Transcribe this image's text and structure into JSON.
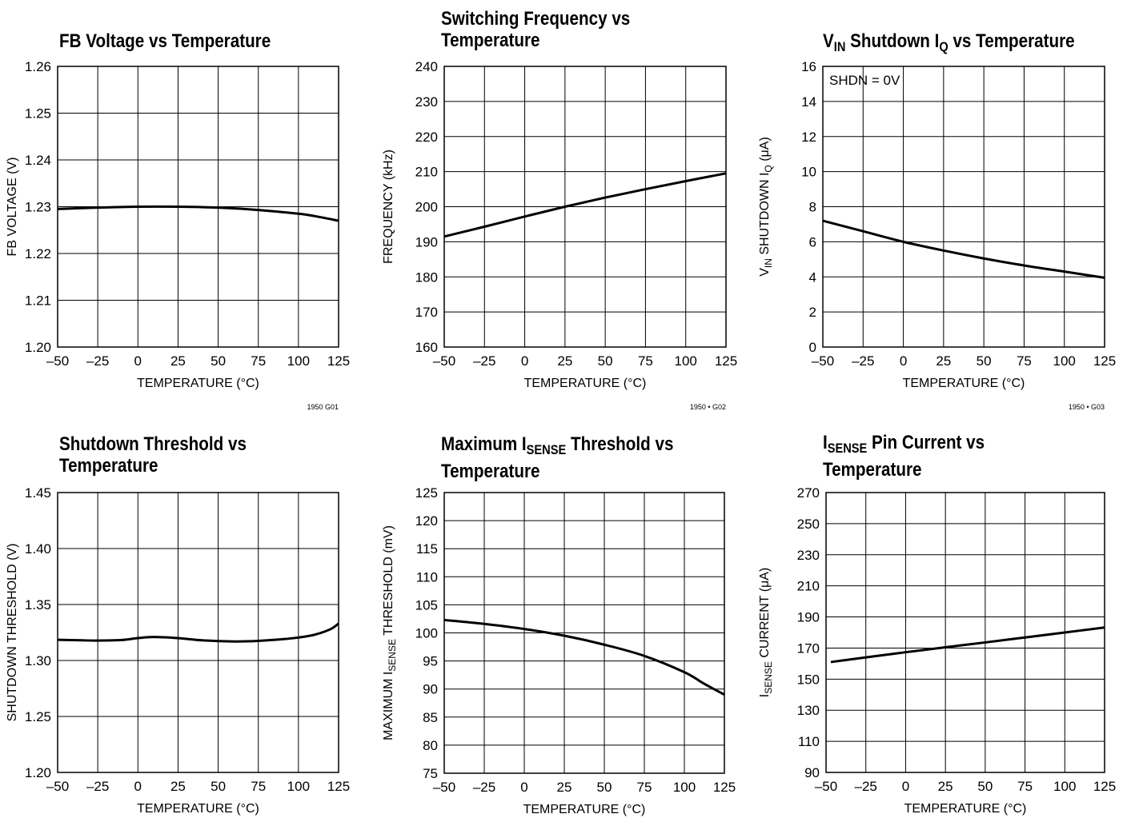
{
  "charts": [
    {
      "title": [
        "FB Voltage vs Temperature"
      ],
      "xlabel": "TEMPERATURE (°C)",
      "ylabel": "FB VOLTAGE (V)",
      "fig_id": "1950 G01",
      "annotation": ""
    },
    {
      "title": [
        "Switching Frequency vs",
        "Temperature"
      ],
      "xlabel": "TEMPERATURE (°C)",
      "ylabel": "FREQUENCY (kHz)",
      "fig_id": "1950 • G02",
      "annotation": ""
    },
    {
      "title_parts": {
        "pre": "V",
        "sub": "IN",
        "mid": " Shutdown I",
        "sub2": "Q",
        "post": " vs Temperature"
      },
      "xlabel": "TEMPERATURE (°C)",
      "ylabel_parts": {
        "pre": "V",
        "sub": "IN",
        "mid": " SHUTDOWN I",
        "sub2": "Q",
        "post": " (μA)"
      },
      "fig_id": "1950 • G03",
      "annotation": "SHDN = 0V"
    },
    {
      "title": [
        "Shutdown Threshold vs",
        "Temperature"
      ],
      "xlabel": "TEMPERATURE (°C)",
      "ylabel": "SHUTDOWN THRESHOLD (V)",
      "fig_id": "",
      "annotation": ""
    },
    {
      "title_parts": {
        "pre": "Maximum I",
        "sub": "SENSE",
        "post": " Threshold vs"
      },
      "title_line2": "Temperature",
      "xlabel": "TEMPERATURE (°C)",
      "ylabel_parts": {
        "pre": "MAXIMUM I",
        "sub": "SENSE",
        "post": " THRESHOLD (mV)"
      },
      "fig_id": "",
      "annotation": ""
    },
    {
      "title_parts": {
        "pre": "I",
        "sub": "SENSE",
        "post": " Pin Current vs"
      },
      "title_line2": "Temperature",
      "xlabel": "TEMPERATURE (°C)",
      "ylabel_parts": {
        "pre": "I",
        "sub": "SENSE",
        "post": " CURRENT (μA)"
      },
      "fig_id": "",
      "annotation": ""
    }
  ],
  "chart_data": [
    {
      "type": "line",
      "title": "FB Voltage vs Temperature",
      "xlabel": "TEMPERATURE (°C)",
      "ylabel": "FB VOLTAGE (V)",
      "xlim": [
        -50,
        125
      ],
      "ylim": [
        1.2,
        1.26
      ],
      "xticks": [
        -50,
        -25,
        0,
        25,
        50,
        75,
        100,
        125
      ],
      "xtick_labels": [
        "–50",
        "–25",
        "0",
        "25",
        "50",
        "75",
        "100",
        "125"
      ],
      "yticks": [
        1.2,
        1.21,
        1.22,
        1.23,
        1.24,
        1.25,
        1.26
      ],
      "ytick_labels": [
        "1.20",
        "1.21",
        "1.22",
        "1.23",
        "1.24",
        "1.25",
        "1.26"
      ],
      "grid": true,
      "series": [
        {
          "x": [
            -50,
            -25,
            0,
            25,
            50,
            75,
            100,
            110,
            125
          ],
          "y": [
            1.2295,
            1.2298,
            1.23,
            1.23,
            1.2298,
            1.2293,
            1.2285,
            1.228,
            1.227
          ]
        }
      ]
    },
    {
      "type": "line",
      "title": "Switching Frequency vs Temperature",
      "xlabel": "TEMPERATURE (°C)",
      "ylabel": "FREQUENCY (kHz)",
      "xlim": [
        -50,
        125
      ],
      "ylim": [
        160,
        240
      ],
      "xticks": [
        -50,
        -25,
        0,
        25,
        50,
        75,
        100,
        125
      ],
      "xtick_labels": [
        "–50",
        "–25",
        "0",
        "25",
        "50",
        "75",
        "100",
        "125"
      ],
      "yticks": [
        160,
        170,
        180,
        190,
        200,
        210,
        220,
        230,
        240
      ],
      "ytick_labels": [
        "160",
        "170",
        "180",
        "190",
        "200",
        "210",
        "220",
        "230",
        "240"
      ],
      "grid": true,
      "series": [
        {
          "x": [
            -50,
            -25,
            0,
            25,
            50,
            75,
            100,
            125
          ],
          "y": [
            191.5,
            194.3,
            197.2,
            200.0,
            202.6,
            205.0,
            207.3,
            209.5
          ]
        }
      ]
    },
    {
      "type": "line",
      "title": "VIN Shutdown IQ vs Temperature",
      "xlabel": "TEMPERATURE (°C)",
      "ylabel": "VIN SHUTDOWN IQ (μA)",
      "xlim": [
        -50,
        125
      ],
      "ylim": [
        0,
        16
      ],
      "xticks": [
        -50,
        -25,
        0,
        25,
        50,
        75,
        100,
        125
      ],
      "xtick_labels": [
        "–50",
        "–25",
        "0",
        "25",
        "50",
        "75",
        "100",
        "125"
      ],
      "yticks": [
        0,
        2,
        4,
        6,
        8,
        10,
        12,
        14,
        16
      ],
      "ytick_labels": [
        "0",
        "2",
        "4",
        "6",
        "8",
        "10",
        "12",
        "14",
        "16"
      ],
      "grid": true,
      "annotation": "SHDN = 0V",
      "series": [
        {
          "x": [
            -50,
            -25,
            0,
            25,
            50,
            75,
            100,
            125
          ],
          "y": [
            7.2,
            6.6,
            6.0,
            5.5,
            5.05,
            4.65,
            4.3,
            3.95
          ]
        }
      ]
    },
    {
      "type": "line",
      "title": "Shutdown Threshold vs Temperature",
      "xlabel": "TEMPERATURE (°C)",
      "ylabel": "SHUTDOWN THRESHOLD (V)",
      "xlim": [
        -50,
        125
      ],
      "ylim": [
        1.2,
        1.45
      ],
      "xticks": [
        -50,
        -25,
        0,
        25,
        50,
        75,
        100,
        125
      ],
      "xtick_labels": [
        "–50",
        "–25",
        "0",
        "25",
        "50",
        "75",
        "100",
        "125"
      ],
      "yticks": [
        1.2,
        1.25,
        1.3,
        1.35,
        1.4,
        1.45
      ],
      "ytick_labels": [
        "1.20",
        "1.25",
        "1.30",
        "1.35",
        "1.40",
        "1.45"
      ],
      "grid": true,
      "series": [
        {
          "x": [
            -50,
            -35,
            -25,
            -10,
            0,
            10,
            25,
            40,
            60,
            75,
            90,
            100,
            110,
            120,
            125
          ],
          "y": [
            1.3185,
            1.318,
            1.3178,
            1.3183,
            1.32,
            1.321,
            1.32,
            1.318,
            1.317,
            1.3175,
            1.319,
            1.3205,
            1.323,
            1.328,
            1.333
          ]
        }
      ]
    },
    {
      "type": "line",
      "title": "Maximum ISENSE Threshold vs Temperature",
      "xlabel": "TEMPERATURE (°C)",
      "ylabel": "MAXIMUM ISENSE THRESHOLD (mV)",
      "xlim": [
        -50,
        125
      ],
      "ylim": [
        75,
        125
      ],
      "xticks": [
        -50,
        -25,
        0,
        25,
        50,
        75,
        100,
        125
      ],
      "xtick_labels": [
        "–50",
        "–25",
        "0",
        "25",
        "50",
        "75",
        "100",
        "125"
      ],
      "yticks": [
        75,
        80,
        85,
        90,
        95,
        100,
        105,
        110,
        115,
        120,
        125
      ],
      "ytick_labels": [
        "75",
        "80",
        "85",
        "90",
        "95",
        "100",
        "105",
        "110",
        "115",
        "120",
        "125"
      ],
      "grid": true,
      "series": [
        {
          "x": [
            -50,
            -25,
            0,
            25,
            50,
            75,
            100,
            112,
            125
          ],
          "y": [
            102.3,
            101.6,
            100.7,
            99.5,
            97.9,
            95.9,
            93.0,
            91.0,
            89.0
          ]
        }
      ]
    },
    {
      "type": "line",
      "title": "ISENSE Pin Current vs Temperature",
      "xlabel": "TEMPERATURE (°C)",
      "ylabel": "ISENSE CURRENT (μA)",
      "xlim": [
        -50,
        125
      ],
      "ylim": [
        90,
        270
      ],
      "xticks": [
        -50,
        -25,
        0,
        25,
        50,
        75,
        100,
        125
      ],
      "xtick_labels": [
        "–50",
        "–25",
        "0",
        "25",
        "50",
        "75",
        "100",
        "125"
      ],
      "yticks": [
        90,
        110,
        130,
        150,
        170,
        190,
        210,
        230,
        250,
        270
      ],
      "ytick_labels": [
        "90",
        "110",
        "130",
        "150",
        "170",
        "190",
        "210",
        "230",
        "250",
        "270"
      ],
      "grid": true,
      "series": [
        {
          "x": [
            -47,
            -25,
            0,
            25,
            50,
            75,
            100,
            125
          ],
          "y": [
            161.0,
            164.0,
            167.3,
            170.5,
            173.6,
            176.8,
            180.0,
            183.2
          ]
        }
      ]
    }
  ]
}
